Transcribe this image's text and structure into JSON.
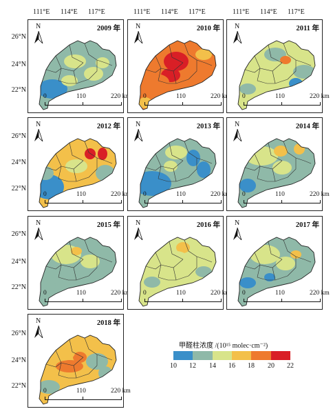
{
  "top_axis": {
    "labels": [
      "111°E",
      "114°E",
      "117°E"
    ]
  },
  "lat_labels": [
    "26°N",
    "24°N",
    "22°N"
  ],
  "year_suffix": "年",
  "scale_bar": {
    "t0": "0",
    "t1": "110",
    "t2": "220 km"
  },
  "compass": {
    "letter": "N"
  },
  "panels": [
    {
      "year": "2009 年",
      "level_pattern": "mostly 12–16, coast 10–12"
    },
    {
      "year": "2010 年",
      "level_pattern": "mostly 18–22, hotspot 20–22"
    },
    {
      "year": "2011 年",
      "level_pattern": "mostly 14–16"
    },
    {
      "year": "2012 年",
      "level_pattern": "16–22 north-central, 10–12 west"
    },
    {
      "year": "2013 年",
      "level_pattern": "mostly 10–14"
    },
    {
      "year": "2014 年",
      "level_pattern": "mostly 12–16"
    },
    {
      "year": "2015 年",
      "level_pattern": "mostly 12–16"
    },
    {
      "year": "2016 年",
      "level_pattern": "mostly 14–16"
    },
    {
      "year": "2017 年",
      "level_pattern": "mostly 12–16"
    },
    {
      "year": "2018 年",
      "level_pattern": "16–20 central, 12–14 coast"
    }
  ],
  "legend": {
    "title": "甲醛柱浓度 /(10¹⁵ molec·cm⁻²)",
    "ticks": [
      "10",
      "12",
      "14",
      "16",
      "18",
      "20",
      "22"
    ],
    "colors": [
      "#3a8fc9",
      "#8fb9a8",
      "#d8e48a",
      "#f3c04a",
      "#ee7a2e",
      "#d91f26"
    ]
  }
}
